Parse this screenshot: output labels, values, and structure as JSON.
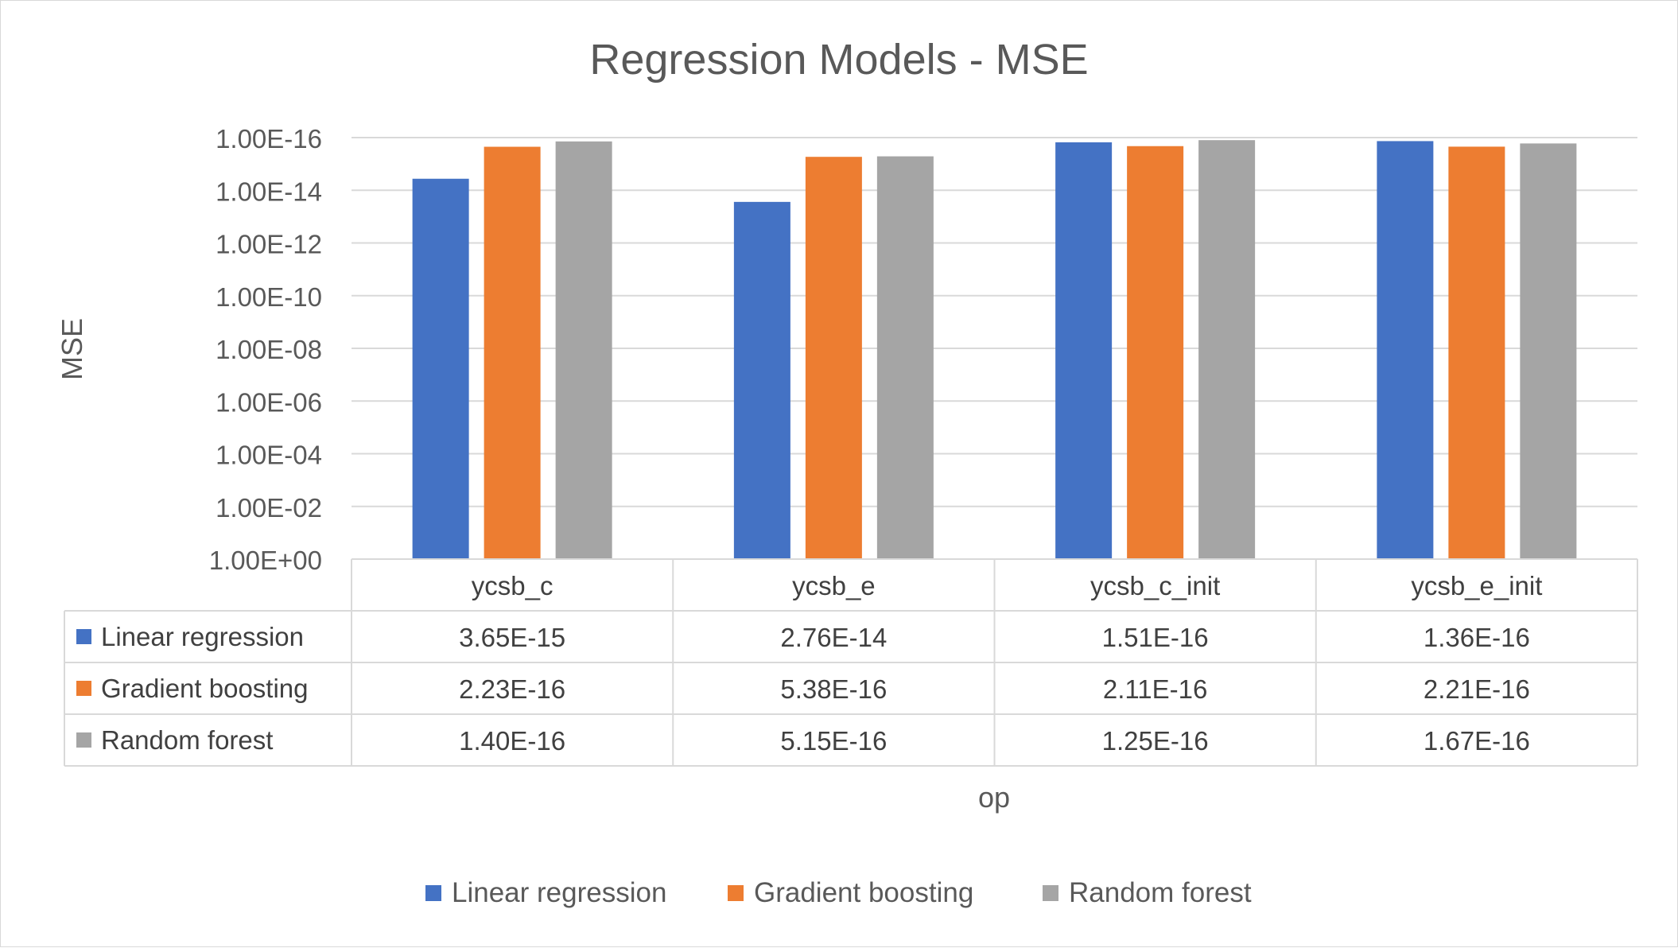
{
  "chart_data": {
    "type": "bar",
    "title": "Regression Models - MSE",
    "xlabel": "op",
    "ylabel": "MSE",
    "y_scale": "log",
    "y_reversed": true,
    "ylim": [
      1,
      1e-16
    ],
    "y_ticks": [
      "1.00E+00",
      "1.00E-02",
      "1.00E-04",
      "1.00E-06",
      "1.00E-08",
      "1.00E-10",
      "1.00E-12",
      "1.00E-14",
      "1.00E-16"
    ],
    "grid": true,
    "legend_position": "bottom",
    "categories": [
      "ycsb_c",
      "ycsb_e",
      "ycsb_c_init",
      "ycsb_e_init"
    ],
    "series": [
      {
        "name": "Linear regression",
        "color": "#4472C4",
        "values": [
          3.65e-15,
          2.76e-14,
          1.51e-16,
          1.36e-16
        ],
        "labels": [
          "3.65E-15",
          "2.76E-14",
          "1.51E-16",
          "1.36E-16"
        ]
      },
      {
        "name": "Gradient boosting",
        "color": "#ED7D31",
        "values": [
          2.23e-16,
          5.38e-16,
          2.11e-16,
          2.21e-16
        ],
        "labels": [
          "2.23E-16",
          "5.38E-16",
          "2.11E-16",
          "2.21E-16"
        ]
      },
      {
        "name": "Random forest",
        "color": "#A5A5A5",
        "values": [
          1.4e-16,
          5.15e-16,
          1.25e-16,
          1.67e-16
        ],
        "labels": [
          "1.40E-16",
          "5.15E-16",
          "1.25E-16",
          "1.67E-16"
        ]
      }
    ],
    "data_table": true
  }
}
